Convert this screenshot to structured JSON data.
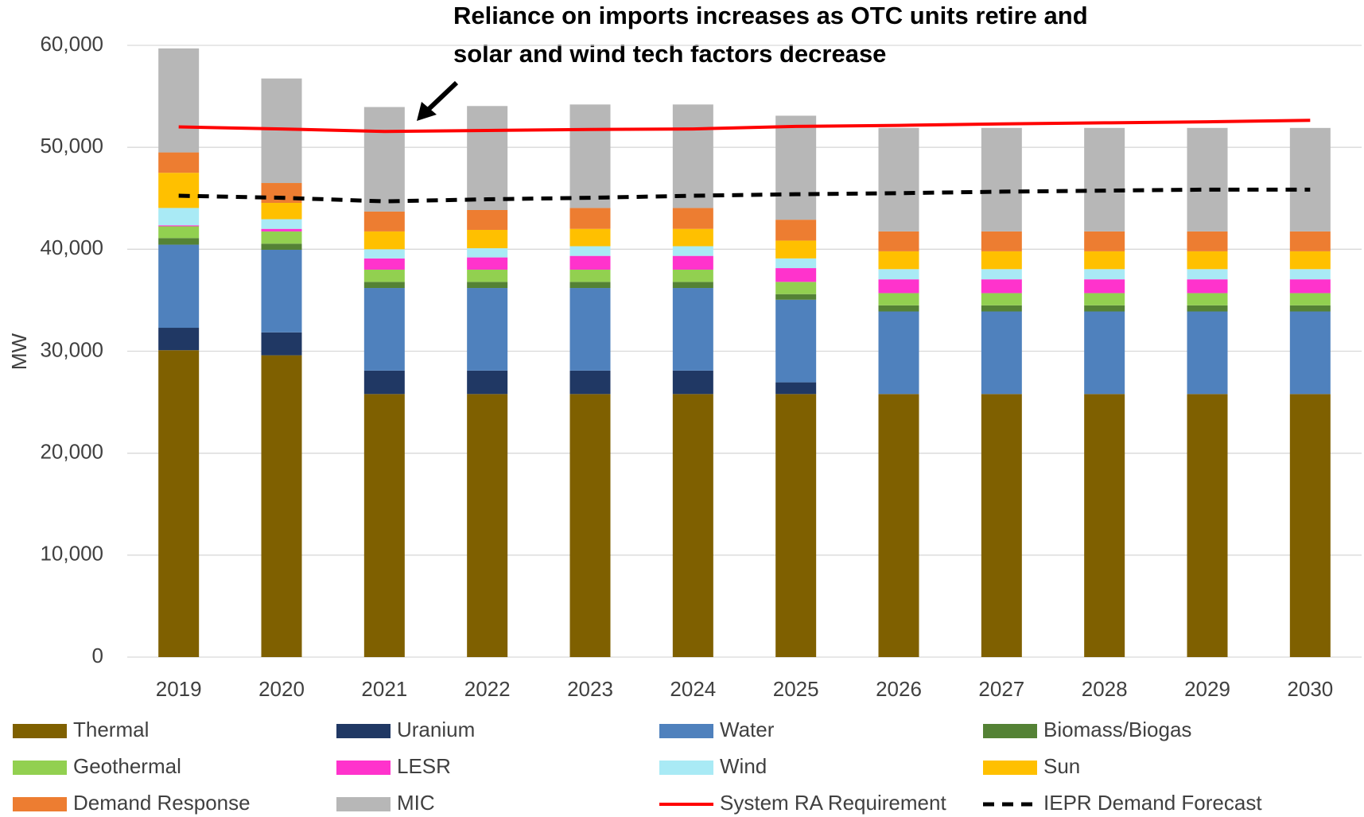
{
  "chart_data": {
    "type": "bar",
    "annotation": [
      "Reliance on imports increases as OTC units retire and",
      "solar and wind tech factors decrease"
    ],
    "ylabel": "MW",
    "categories": [
      "2019",
      "2020",
      "2021",
      "2022",
      "2023",
      "2024",
      "2025",
      "2026",
      "2027",
      "2028",
      "2029",
      "2030"
    ],
    "ylim": [
      0,
      60000
    ],
    "yticks": [
      0,
      {
        "value": 10000,
        "label": "10,000"
      },
      {
        "value": 20000,
        "label": "20,000"
      },
      {
        "value": 30000,
        "label": "30,000"
      },
      {
        "value": 40000,
        "label": "40,000"
      },
      {
        "value": 50000,
        "label": "50,000"
      },
      {
        "value": 60000,
        "label": "60,000"
      }
    ],
    "grid": true,
    "stacked": true,
    "series": [
      {
        "name": "Thermal",
        "color": "#7f6000",
        "values": [
          30100,
          29600,
          25800,
          25800,
          25800,
          25800,
          25800,
          25800,
          25800,
          25800,
          25800,
          25800
        ]
      },
      {
        "name": "Uranium",
        "color": "#203864",
        "values": [
          2200,
          2250,
          2300,
          2300,
          2300,
          2300,
          1150,
          0,
          0,
          0,
          0,
          0
        ]
      },
      {
        "name": "Water",
        "color": "#4f81bd",
        "values": [
          8150,
          8100,
          8100,
          8100,
          8100,
          8100,
          8100,
          8100,
          8100,
          8100,
          8100,
          8100
        ]
      },
      {
        "name": "Biomass/Biogas",
        "color": "#548235",
        "values": [
          650,
          600,
          600,
          600,
          600,
          600,
          550,
          600,
          600,
          600,
          600,
          600
        ]
      },
      {
        "name": "Geothermal",
        "color": "#92d050",
        "values": [
          1150,
          1200,
          1200,
          1200,
          1200,
          1200,
          1200,
          1200,
          1200,
          1200,
          1200,
          1200
        ]
      },
      {
        "name": "LESR",
        "color": "#ff33cc",
        "values": [
          100,
          250,
          1100,
          1200,
          1350,
          1350,
          1350,
          1350,
          1350,
          1350,
          1350,
          1350
        ]
      },
      {
        "name": "Wind",
        "color": "#a9eaf5",
        "values": [
          1700,
          950,
          900,
          900,
          950,
          950,
          950,
          1000,
          1000,
          1000,
          1000,
          1000
        ]
      },
      {
        "name": "Sun",
        "color": "#ffc000",
        "values": [
          3450,
          1600,
          1750,
          1800,
          1700,
          1700,
          1750,
          1750,
          1750,
          1750,
          1750,
          1750
        ]
      },
      {
        "name": "Demand Response",
        "color": "#ed7d31",
        "values": [
          2000,
          1950,
          1950,
          1950,
          2050,
          2050,
          2050,
          1950,
          1950,
          1950,
          1950,
          1950
        ]
      },
      {
        "name": "MIC",
        "color": "#b7b7b7",
        "values": [
          10200,
          10250,
          10250,
          10200,
          10150,
          10150,
          10200,
          10150,
          10150,
          10150,
          10150,
          10150
        ]
      },
      {
        "name": "System RA Requirement",
        "type": "line",
        "color": "#ff0000",
        "dash": false,
        "values": [
          52000,
          51800,
          51550,
          51650,
          51750,
          51800,
          52050,
          52150,
          52300,
          52400,
          52500,
          52650
        ]
      },
      {
        "name": "IEPR Demand Forecast",
        "type": "line",
        "color": "#000000",
        "dash": true,
        "values": [
          45250,
          45050,
          44700,
          44900,
          45050,
          45250,
          45400,
          45500,
          45650,
          45750,
          45850,
          45850
        ]
      }
    ]
  }
}
